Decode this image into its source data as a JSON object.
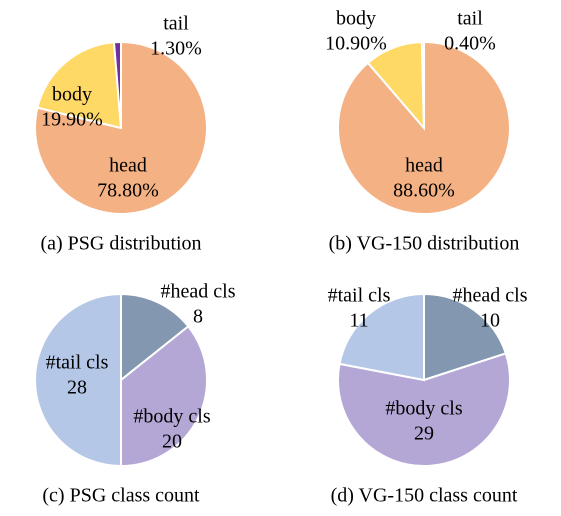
{
  "chart_data": [
    {
      "type": "pie",
      "title": "(a) PSG distribution",
      "categories": [
        "head",
        "body",
        "tail"
      ],
      "values": [
        78.8,
        19.9,
        1.3
      ],
      "value_labels": [
        "78.80%",
        "19.90%",
        "1.30%"
      ],
      "colors": [
        "#f4b183",
        "#ffd966",
        "#7030a0"
      ]
    },
    {
      "type": "pie",
      "title": "(b) VG-150 distribution",
      "categories": [
        "head",
        "body",
        "tail"
      ],
      "values": [
        88.6,
        10.9,
        0.4
      ],
      "value_labels": [
        "88.60%",
        "10.90%",
        "0.40%"
      ],
      "colors": [
        "#f4b183",
        "#ffd966",
        "#7030a0"
      ]
    },
    {
      "type": "pie",
      "title": "(c) PSG class count",
      "categories": [
        "#head cls",
        "#body cls",
        "#tail cls"
      ],
      "values": [
        8,
        20,
        28
      ],
      "colors": [
        "#8497b0",
        "#b4a7d6",
        "#b4c7e7"
      ]
    },
    {
      "type": "pie",
      "title": "(d) VG-150 class count",
      "categories": [
        "#head cls",
        "#body cls",
        "#tail cls"
      ],
      "values": [
        10,
        29,
        11
      ],
      "colors": [
        "#8497b0",
        "#b4a7d6",
        "#b4c7e7"
      ]
    }
  ]
}
